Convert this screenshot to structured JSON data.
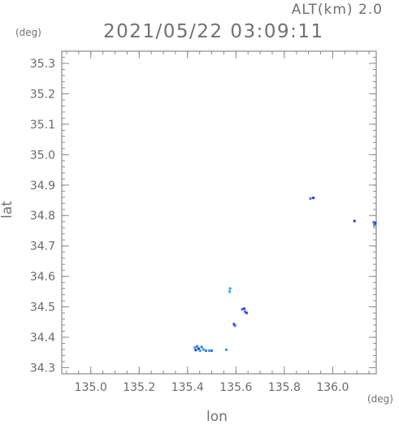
{
  "header": {
    "alt_label": "ALT(km) 2.0",
    "datetime": "2021/05/22 03:09:11"
  },
  "chart_data": {
    "type": "scatter",
    "title": "2021/05/22 03:09:11",
    "xlabel": "lon",
    "ylabel": "lat",
    "x_unit": "(deg)",
    "y_unit": "(deg)",
    "xlim": [
      134.88,
      136.18
    ],
    "ylim": [
      34.28,
      35.34
    ],
    "x_ticks": [
      135.0,
      135.2,
      135.4,
      135.6,
      135.8,
      136.0
    ],
    "x_tick_labels": [
      "135.0",
      "135.2",
      "135.4",
      "135.6",
      "135.8",
      "136.0"
    ],
    "y_ticks": [
      34.3,
      34.4,
      34.5,
      34.6,
      34.7,
      34.8,
      34.9,
      35.0,
      35.1,
      35.2,
      35.3
    ],
    "y_tick_labels": [
      "34.3",
      "34.4",
      "34.5",
      "34.6",
      "34.7",
      "34.8",
      "34.9",
      "35.0",
      "35.1",
      "35.2",
      "35.3"
    ],
    "x_minor_step": 0.05,
    "y_minor_step": 0.02,
    "grid": false,
    "colors": {
      "dark": "#2b3fd6",
      "mid": "#4a6cf0",
      "light": "#2aa7e8"
    },
    "points": [
      {
        "lon": 135.43,
        "lat": 34.366,
        "color": "light"
      },
      {
        "lon": 135.434,
        "lat": 34.358,
        "color": "dark"
      },
      {
        "lon": 135.44,
        "lat": 34.37,
        "color": "mid"
      },
      {
        "lon": 135.446,
        "lat": 34.362,
        "color": "dark"
      },
      {
        "lon": 135.452,
        "lat": 34.356,
        "color": "light"
      },
      {
        "lon": 135.458,
        "lat": 34.368,
        "color": "mid"
      },
      {
        "lon": 135.466,
        "lat": 34.36,
        "color": "light"
      },
      {
        "lon": 135.476,
        "lat": 34.356,
        "color": "mid"
      },
      {
        "lon": 135.49,
        "lat": 34.356,
        "color": "light"
      },
      {
        "lon": 135.5,
        "lat": 34.356,
        "color": "mid"
      },
      {
        "lon": 135.56,
        "lat": 34.359,
        "color": "light"
      },
      {
        "lon": 135.574,
        "lat": 34.55,
        "color": "light"
      },
      {
        "lon": 135.576,
        "lat": 34.56,
        "color": "light"
      },
      {
        "lon": 135.592,
        "lat": 34.443,
        "color": "dark"
      },
      {
        "lon": 135.596,
        "lat": 34.438,
        "color": "mid"
      },
      {
        "lon": 135.626,
        "lat": 34.492,
        "color": "mid"
      },
      {
        "lon": 135.634,
        "lat": 34.494,
        "color": "dark"
      },
      {
        "lon": 135.638,
        "lat": 34.484,
        "color": "mid"
      },
      {
        "lon": 135.644,
        "lat": 34.48,
        "color": "dark"
      },
      {
        "lon": 135.908,
        "lat": 34.856,
        "color": "mid"
      },
      {
        "lon": 135.92,
        "lat": 34.858,
        "color": "dark"
      },
      {
        "lon": 136.09,
        "lat": 34.782,
        "color": "dark"
      },
      {
        "lon": 136.17,
        "lat": 34.778,
        "color": "mid"
      },
      {
        "lon": 136.172,
        "lat": 34.768,
        "color": "light"
      },
      {
        "lon": 136.176,
        "lat": 34.774,
        "color": "dark"
      }
    ]
  }
}
